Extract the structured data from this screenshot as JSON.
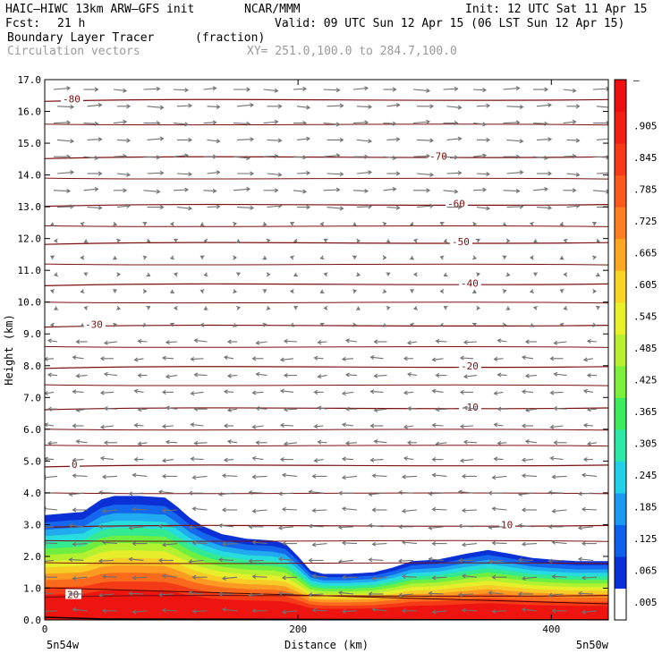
{
  "header": {
    "model": "HAIC–HIWC 13km ARW–GFS init",
    "org": "NCAR/MMM",
    "init": "Init: 12 UTC Sat 11 Apr 15",
    "fcst_label": "Fcst:",
    "fcst_value": "21 h",
    "valid": "Valid: 09 UTC Sun 12 Apr 15 (06 LST Sun 12 Apr 15)",
    "field": "Boundary Layer Tracer",
    "field_units": "(fraction)",
    "vectors": "Circulation vectors",
    "xy": "XY= 251.0,100.0 to 284.7,100.0"
  },
  "chart_data": {
    "type": "area",
    "title": "Boundary Layer Tracer",
    "units": "(fraction)",
    "xlabel": "Distance (km)",
    "ylabel": "Height (km)",
    "xlim": [
      0,
      445
    ],
    "ylim": [
      0,
      17
    ],
    "x_ticks": [
      0,
      200,
      400
    ],
    "y_ticks": [
      "0.0",
      "1.0",
      "2.0",
      "3.0",
      "4.0",
      "5.0",
      "6.0",
      "7.0",
      "8.0",
      "9.0",
      "10.0",
      "11.0",
      "12.0",
      "13.0",
      "14.0",
      "15.0",
      "16.0",
      "17.0"
    ],
    "x_end_labels": {
      "left": "5n54w",
      "right": "5n50w"
    },
    "colorbar_labels": [
      ".005",
      ".065",
      ".125",
      ".185",
      ".245",
      ".305",
      ".365",
      ".425",
      ".485",
      ".545",
      ".605",
      ".665",
      ".725",
      ".785",
      ".845",
      ".905"
    ],
    "colorbar_top_label": "–",
    "colorbar_colors": [
      "#ffffff",
      "#0a2fd8",
      "#1060ee",
      "#1a9af0",
      "#22d0e8",
      "#2ee8a8",
      "#3ceb5e",
      "#7cf03a",
      "#b8f030",
      "#e8f02c",
      "#f8d426",
      "#fca822",
      "#fc8020",
      "#fa5a1c",
      "#f63a18",
      "#f22014",
      "#ee1010"
    ],
    "tracer_top_km": [
      [
        0,
        3.3
      ],
      [
        15,
        3.35
      ],
      [
        30,
        3.4
      ],
      [
        45,
        3.8
      ],
      [
        55,
        3.9
      ],
      [
        75,
        3.9
      ],
      [
        95,
        3.85
      ],
      [
        105,
        3.55
      ],
      [
        115,
        3.2
      ],
      [
        125,
        2.95
      ],
      [
        140,
        2.7
      ],
      [
        160,
        2.55
      ],
      [
        180,
        2.5
      ],
      [
        190,
        2.4
      ],
      [
        200,
        2.0
      ],
      [
        210,
        1.55
      ],
      [
        220,
        1.45
      ],
      [
        240,
        1.45
      ],
      [
        260,
        1.5
      ],
      [
        275,
        1.65
      ],
      [
        290,
        1.85
      ],
      [
        310,
        1.9
      ],
      [
        335,
        2.1
      ],
      [
        350,
        2.2
      ],
      [
        365,
        2.1
      ],
      [
        385,
        1.95
      ],
      [
        400,
        1.9
      ],
      [
        420,
        1.85
      ],
      [
        445,
        1.85
      ]
    ],
    "isotherms": [
      {
        "label": "-80",
        "y": 16.4
      },
      {
        "label": "-70",
        "y": 14.6
      },
      {
        "label": "-60",
        "y": 13.1
      },
      {
        "label": "-50",
        "y": 11.9
      },
      {
        "label": "-40",
        "y": 10.6
      },
      {
        "label": "-30",
        "y": 9.3
      },
      {
        "label": "-20",
        "y": 8.0
      },
      {
        "label": "-10",
        "y": 6.7
      },
      {
        "label": "0",
        "y": 4.9
      },
      {
        "label": "10",
        "y": 3.0
      },
      {
        "label": "20",
        "y": 0.8
      }
    ],
    "grid": false,
    "legend": "right"
  }
}
